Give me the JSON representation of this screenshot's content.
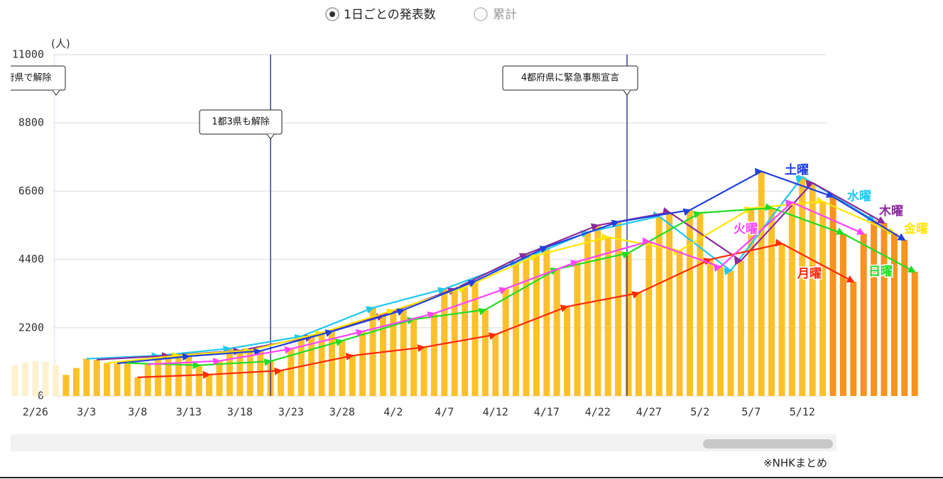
{
  "header": {
    "options": [
      "1日ごとの発表数",
      "累計"
    ],
    "selected": 0
  },
  "chart_data": {
    "type": "bar",
    "unit": "(人)",
    "categories": [
      null,
      null,
      "2/26",
      null,
      null,
      null,
      null,
      "3/3",
      null,
      null,
      null,
      null,
      "3/8",
      null,
      null,
      null,
      null,
      "3/13",
      null,
      null,
      null,
      null,
      "3/18",
      null,
      null,
      null,
      null,
      "3/23",
      null,
      null,
      null,
      null,
      "3/28",
      null,
      null,
      null,
      null,
      "4/2",
      null,
      null,
      null,
      null,
      "4/7",
      null,
      null,
      null,
      null,
      "4/12",
      null,
      null,
      null,
      null,
      "4/17",
      null,
      null,
      null,
      null,
      "4/22",
      null,
      null,
      null,
      null,
      "4/27",
      null,
      null,
      null,
      null,
      "5/2",
      null,
      null,
      null,
      null,
      "5/7",
      null,
      null,
      null,
      null,
      "5/12",
      null,
      null,
      null,
      null,
      null,
      null,
      null,
      null,
      null,
      null,
      null
    ],
    "values": [
      1000,
      1080,
      1120,
      1100,
      1000,
      680,
      900,
      1200,
      1170,
      1060,
      1050,
      1060,
      600,
      1020,
      1300,
      1300,
      1310,
      1280,
      990,
      690,
      1130,
      1530,
      1460,
      1470,
      1450,
      1120,
      820,
      1520,
      1920,
      1910,
      2040,
      2080,
      1780,
      1300,
      2080,
      2840,
      2600,
      2760,
      2770,
      2470,
      1570,
      2660,
      3450,
      3450,
      3500,
      3700,
      2780,
      1980,
      3460,
      4310,
      4570,
      4530,
      4800,
      4090,
      2880,
      4330,
      5280,
      5500,
      5120,
      5610,
      4610,
      3320,
      4980,
      5790,
      5920,
      4680,
      5990,
      5900,
      4400,
      4160,
      4040,
      4360,
      6050,
      7240,
      6060,
      4910,
      6240,
      7060,
      6870,
      6270,
      6420,
      5230,
      3680,
      5230,
      5660,
      5580,
      5240,
      5030,
      4000
    ],
    "color": "#fcc12a",
    "outside_left_color": "#fdf1cf",
    "outside_right_color": "#f7931e",
    "ylim": [
      0,
      11000
    ],
    "yticks": [
      0,
      2200,
      4400,
      6600,
      8800,
      11000
    ],
    "grid": true,
    "weekday_lines": [
      {
        "name": "水曜",
        "color": "#1ec8f0"
      },
      {
        "name": "木曜",
        "color": "#8b2a9a"
      },
      {
        "name": "金曜",
        "color": "#ffe600"
      },
      {
        "name": "土曜",
        "color": "#2040e0"
      },
      {
        "name": "日曜",
        "color": "#22dd22"
      },
      {
        "name": "月曜",
        "color": "#ff2a00"
      },
      {
        "name": "火曜",
        "color": "#ff44ff"
      }
    ],
    "annotations": [
      "府県で解除",
      "1都3県も解除",
      "4都府県に緊急事態宣言"
    ],
    "source": "※NHKまとめ"
  }
}
